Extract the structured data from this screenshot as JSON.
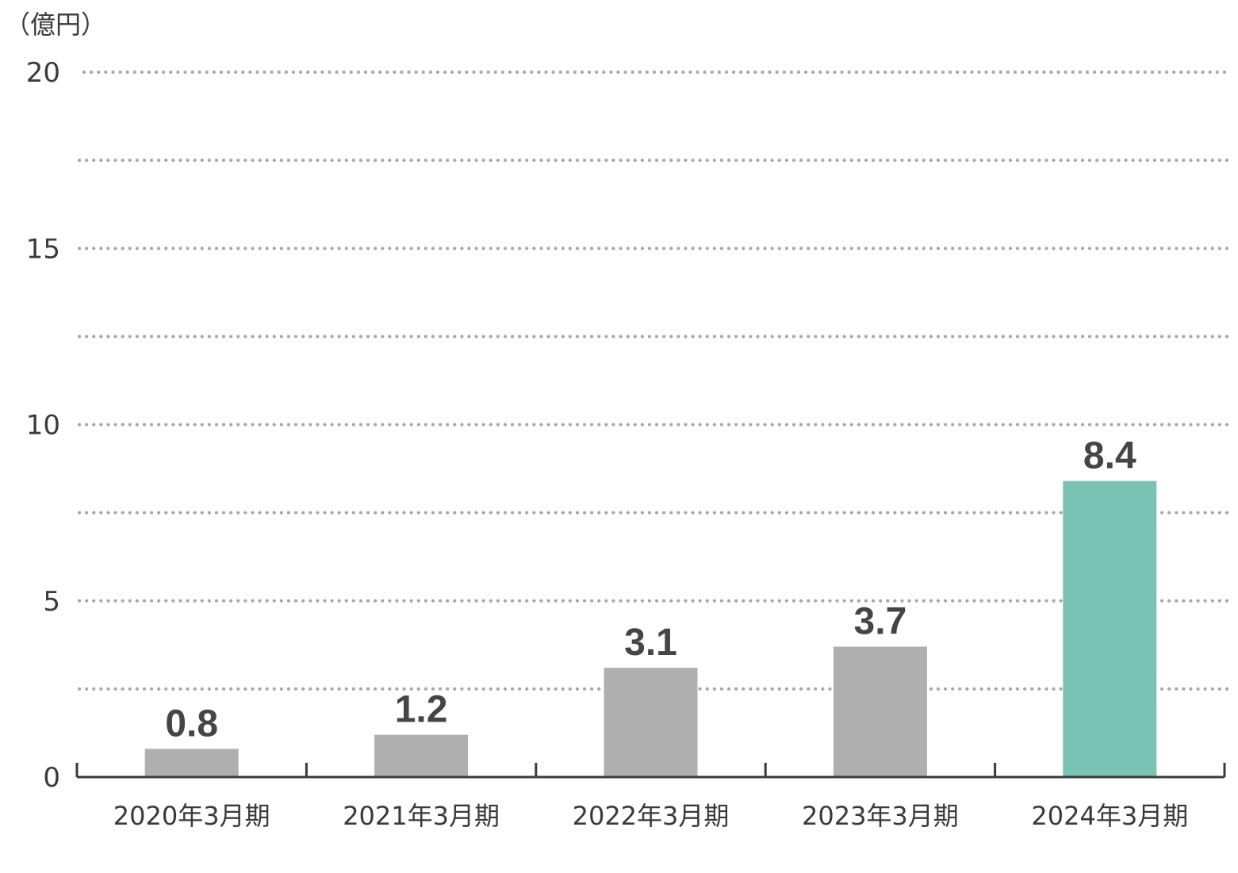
{
  "chart_data": {
    "type": "bar",
    "unit_label": "（億円）",
    "categories": [
      "2020年3月期",
      "2021年3月期",
      "2022年3月期",
      "2023年3月期",
      "2024年3月期"
    ],
    "values": [
      0.8,
      1.2,
      3.1,
      3.7,
      8.4
    ],
    "value_labels": [
      "0.8",
      "1.2",
      "3.1",
      "3.7",
      "8.4"
    ],
    "ylim": [
      0,
      20
    ],
    "yticks": [
      0,
      5,
      10,
      15,
      20
    ],
    "ytick_labels": [
      "0",
      "5",
      "10",
      "15",
      "20"
    ],
    "grid": true,
    "grid_step": 2.5,
    "colors": {
      "bar": "#afafaf",
      "highlight": "#7ac2b4",
      "grid": "#a6a6a6",
      "axis": "#3a3a3a",
      "text": "#3a3a3a",
      "value_text": "#454545"
    },
    "highlight_index": 4
  }
}
